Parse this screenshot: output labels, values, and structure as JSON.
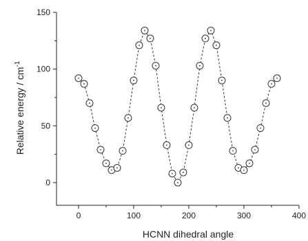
{
  "chart_data": {
    "type": "scatter",
    "title": "",
    "xlabel": "HCNN dihedral angle",
    "ylabel_main": "Relative energy / cm",
    "ylabel_exp": "-1",
    "xlim": [
      -40,
      400
    ],
    "ylim": [
      -20,
      150
    ],
    "x_ticks": [
      0,
      100,
      200,
      300,
      400
    ],
    "y_ticks": [
      0,
      50,
      100,
      150
    ],
    "grid": false,
    "legend": "none",
    "marker": "open-circle-with-center-dot",
    "line_style": "dashed",
    "color": "#333333",
    "series": [
      {
        "x": [
          0,
          10,
          20,
          30,
          40,
          50,
          60,
          70,
          80,
          90,
          100,
          110,
          120,
          130,
          140,
          150,
          160,
          170,
          180,
          190,
          200,
          210,
          220,
          230,
          240,
          250,
          260,
          270,
          280,
          290,
          300,
          310,
          320,
          330,
          340,
          350,
          360
        ],
        "y": [
          92,
          87,
          70,
          48,
          29,
          17,
          11,
          13,
          28,
          57,
          90,
          121,
          134,
          127,
          103,
          66,
          33,
          8,
          0,
          9,
          33,
          66,
          103,
          127,
          134,
          121,
          90,
          57,
          28,
          13,
          11,
          17,
          29,
          48,
          70,
          87,
          92
        ]
      }
    ]
  }
}
